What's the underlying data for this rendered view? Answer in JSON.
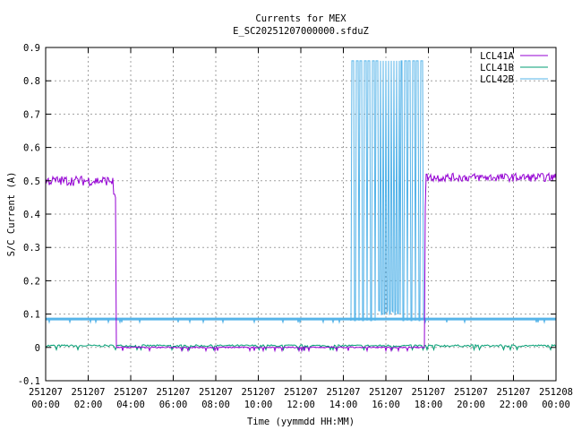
{
  "chart_data": {
    "type": "line",
    "title": "Currents for MEX",
    "subtitle": "E_SC20251207000000.sfduZ",
    "xlabel": "Time (yymmdd HH:MM)",
    "ylabel": "S/C Current (A)",
    "xlim": [
      "2025-12-07 00:00",
      "2025-12-08 00:00"
    ],
    "ylim": [
      -0.1,
      0.9
    ],
    "grid": true,
    "legend_position": "top-right",
    "x_ticks": [
      {
        "date": "251207",
        "time": "00:00"
      },
      {
        "date": "251207",
        "time": "02:00"
      },
      {
        "date": "251207",
        "time": "04:00"
      },
      {
        "date": "251207",
        "time": "06:00"
      },
      {
        "date": "251207",
        "time": "08:00"
      },
      {
        "date": "251207",
        "time": "10:00"
      },
      {
        "date": "251207",
        "time": "12:00"
      },
      {
        "date": "251207",
        "time": "14:00"
      },
      {
        "date": "251207",
        "time": "16:00"
      },
      {
        "date": "251207",
        "time": "18:00"
      },
      {
        "date": "251207",
        "time": "20:00"
      },
      {
        "date": "251207",
        "time": "22:00"
      },
      {
        "date": "251208",
        "time": "00:00"
      }
    ],
    "y_ticks": [
      "-0.1",
      "0",
      "0.1",
      "0.2",
      "0.3",
      "0.4",
      "0.5",
      "0.6",
      "0.7",
      "0.8",
      "0.9"
    ],
    "series": [
      {
        "name": "LCL41A",
        "color": "#9400d3",
        "x": [
          "00:00",
          "03:08",
          "03:12",
          "03:16",
          "03:18",
          "17:50",
          "17:52",
          "17:56",
          "18:00",
          "24:00"
        ],
        "y": [
          0.5,
          0.5,
          0.46,
          0.45,
          0.0,
          0.0,
          0.42,
          0.52,
          0.51,
          0.5
        ]
      },
      {
        "name": "LCL41B",
        "color": "#009e73",
        "x": [
          "00:00",
          "24:00"
        ],
        "y": [
          0.005,
          0.005
        ]
      },
      {
        "name": "LCL42B",
        "color": "#56b4e9",
        "x": [
          "00:00",
          "14:20",
          "14:22",
          "17:42",
          "17:44",
          "24:00"
        ],
        "y": [
          0.085,
          0.085,
          0.86,
          0.86,
          0.085,
          0.085
        ],
        "note_segment_14_20_to_17_42": "rapid switching between 0.08 and 0.86"
      }
    ]
  }
}
